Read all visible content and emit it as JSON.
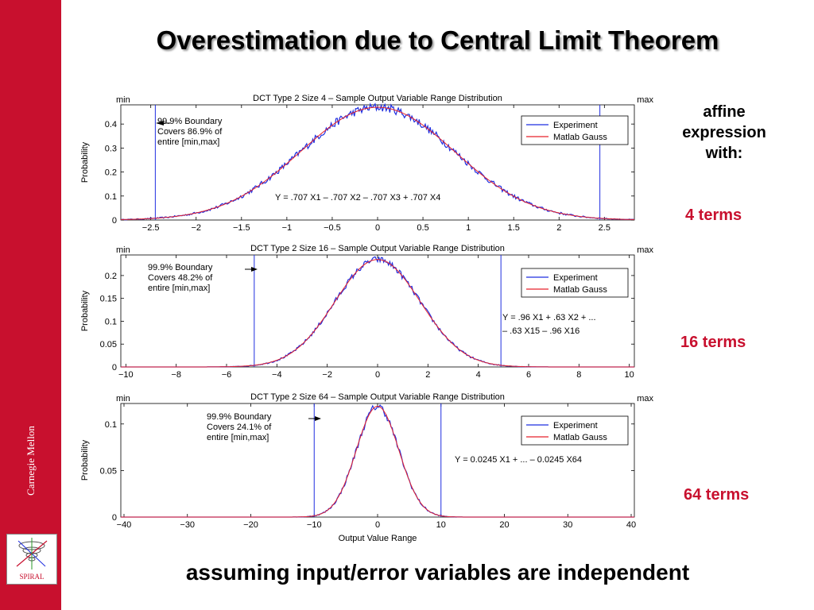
{
  "slide": {
    "title": "Overestimation due to Central Limit Theorem",
    "footer": "assuming input/error variables are independent",
    "sidebar_text": "Carnegie Mellon",
    "logo_text": "SPIRAL",
    "side_note": [
      "affine",
      "expression",
      "with:"
    ],
    "terms": [
      "4 terms",
      "16 terms",
      "64 terms"
    ]
  },
  "colors": {
    "accent": "#c8102e",
    "experiment": "#1f2ee0",
    "gauss": "#e8222a"
  },
  "chart_data": [
    {
      "type": "line",
      "title": "DCT Type 2 Size 4 – Sample Output Variable Range Distribution",
      "xlabel": "",
      "ylabel": "Probability",
      "xlim": [
        -2.83,
        2.83
      ],
      "ylim": [
        0,
        0.48
      ],
      "xticks": [
        -2.5,
        -2,
        -1.5,
        -1,
        -0.5,
        0,
        0.5,
        1,
        1.5,
        2,
        2.5
      ],
      "xtick_labels": [
        "−2.5",
        "−2",
        "−1.5",
        "−1",
        "−0.5",
        "0",
        "0.5",
        "1",
        "1.5",
        "2",
        "2.5"
      ],
      "yticks": [
        0,
        0.1,
        0.2,
        0.3,
        0.4
      ],
      "ytick_labels": [
        "0",
        "0.1",
        "0.2",
        "0.3",
        "0.4"
      ],
      "sigma": 0.85,
      "peak": 0.47,
      "noise": 0.018,
      "boundary": [
        -2.45,
        2.45
      ],
      "min_label": "min",
      "max_label": "max",
      "annotation": [
        "99.9% Boundary",
        "Covers 86.9% of",
        "entire [min,max]"
      ],
      "formula": "Y = .707 X1 – .707 X2 – .707 X3 + .707 X4",
      "legend": [
        "Experiment",
        "Matlab Gauss"
      ],
      "series": [
        {
          "name": "Experiment",
          "color": "#1f2ee0"
        },
        {
          "name": "Matlab Gauss",
          "color": "#e8222a"
        }
      ]
    },
    {
      "type": "line",
      "title": "DCT Type 2 Size 16 – Sample Output Variable Range Distribution",
      "xlabel": "",
      "ylabel": "Probability",
      "xlim": [
        -10.2,
        10.2
      ],
      "ylim": [
        0,
        0.245
      ],
      "xticks": [
        -10,
        -8,
        -6,
        -4,
        -2,
        0,
        2,
        4,
        6,
        8,
        10
      ],
      "xtick_labels": [
        "−10",
        "−8",
        "−6",
        "−4",
        "−2",
        "0",
        "2",
        "4",
        "6",
        "8",
        "10"
      ],
      "yticks": [
        0,
        0.05,
        0.1,
        0.15,
        0.2
      ],
      "ytick_labels": [
        "0",
        "0.05",
        "0.1",
        "0.15",
        "0.2"
      ],
      "sigma": 1.7,
      "peak": 0.235,
      "noise": 0.007,
      "boundary": [
        -4.9,
        4.9
      ],
      "min_label": "min",
      "max_label": "max",
      "annotation": [
        "99.9% Boundary",
        "Covers 48.2% of",
        "entire [min,max]"
      ],
      "formula": "Y = .96 X1 + .63 X2 + ... – .63 X15 – .96 X16",
      "legend": [
        "Experiment",
        "Matlab Gauss"
      ],
      "series": [
        {
          "name": "Experiment",
          "color": "#1f2ee0"
        },
        {
          "name": "Matlab Gauss",
          "color": "#e8222a"
        }
      ]
    },
    {
      "type": "line",
      "title": "DCT Type 2 Size 64 – Sample Output Variable Range Distribution",
      "xlabel": "Output Value Range",
      "ylabel": "Probability",
      "xlim": [
        -40.5,
        40.5
      ],
      "ylim": [
        0,
        0.122
      ],
      "xticks": [
        -40,
        -30,
        -20,
        -10,
        0,
        10,
        20,
        30,
        40
      ],
      "xtick_labels": [
        "−40",
        "−30",
        "−20",
        "−10",
        "0",
        "10",
        "20",
        "30",
        "40"
      ],
      "yticks": [
        0,
        0.05,
        0.1
      ],
      "ytick_labels": [
        "0",
        "0.05",
        "0.1"
      ],
      "sigma": 3.35,
      "peak": 0.119,
      "noise": 0.004,
      "boundary": [
        -10,
        10
      ],
      "min_label": "min",
      "max_label": "max",
      "annotation": [
        "99.9% Boundary",
        "Covers 24.1% of",
        "entire [min,max]"
      ],
      "formula": "Y = 0.0245 X1 + ... – 0.0245 X64",
      "legend": [
        "Experiment",
        "Matlab Gauss"
      ],
      "series": [
        {
          "name": "Experiment",
          "color": "#1f2ee0"
        },
        {
          "name": "Matlab Gauss",
          "color": "#e8222a"
        }
      ]
    }
  ]
}
